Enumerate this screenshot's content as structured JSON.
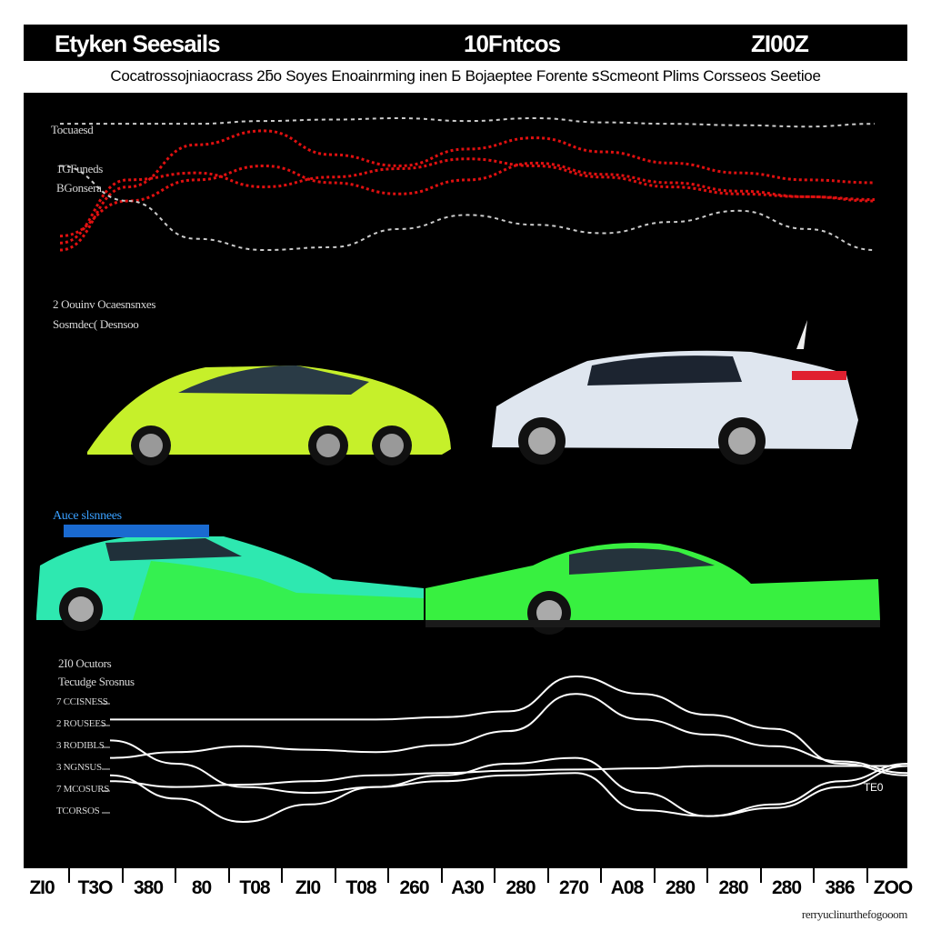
{
  "header": {
    "left_title": "Etyken Seesails",
    "center_title": "10Fntcos",
    "right_title": "ZI00Z"
  },
  "subtitle": "Cocatrossojniaocrass 2ƃo Soyes Enoainrming inen Б Bojaeptee Forente ꜱScmeont Plims Corsseos Seetioe",
  "top_chart": {
    "label_top": "Tocuaesd",
    "label_mid1": "1GFuneds",
    "label_mid2": "BGonsera"
  },
  "middle": {
    "label1": "2 Oouinv Ocaesnsnxes",
    "label2": "Sosmdec( Desnsoo",
    "car_label": "Auce slsnnees"
  },
  "bottom_chart": {
    "label1": "2I0 Ocutors",
    "label2": "Tecudge Srosnus",
    "y_ticks": [
      "7 CCISNESS",
      "2 ROUSEES",
      "3 RODIBLS",
      "3 NGNSUS",
      "7 MCOSURS",
      "TCORSOS"
    ],
    "end_label": "TE0"
  },
  "x_axis": {
    "ticks": [
      "ZI0",
      "T3O",
      "380",
      "80",
      "T08",
      "ZI0",
      "T08",
      "260",
      "A30",
      "280",
      "270",
      "A08",
      "280",
      "280",
      "280",
      "386",
      "ZOO"
    ]
  },
  "footer": "rerryuclinurthefogooom",
  "chart_data": [
    {
      "type": "line",
      "title": "",
      "xlabel": "",
      "ylabel": "",
      "x": [
        0,
        1,
        2,
        3,
        4,
        5,
        6,
        7,
        8,
        9,
        10,
        11,
        12
      ],
      "series": [
        {
          "values": [
            10,
            55,
            85,
            95,
            78,
            70,
            82,
            90,
            80,
            72,
            65,
            60,
            58
          ]
        },
        {
          "values": [
            15,
            60,
            65,
            55,
            62,
            68,
            75,
            70,
            62,
            55,
            50,
            48,
            46
          ]
        },
        {
          "values": [
            20,
            45,
            60,
            70,
            58,
            50,
            60,
            72,
            64,
            58,
            52,
            48,
            45
          ]
        },
        {
          "values": [
            70,
            45,
            18,
            10,
            12,
            25,
            35,
            28,
            22,
            30,
            38,
            25,
            10
          ]
        },
        {
          "values": [
            100,
            100,
            100,
            102,
            103,
            104,
            102,
            104,
            101,
            100,
            99,
            98,
            100
          ]
        }
      ],
      "colors": [
        "#e01010",
        "#e01010",
        "#e01010",
        "#cccccc",
        "#cccccc"
      ]
    },
    {
      "type": "line",
      "title": "",
      "xlabel": "",
      "ylabel": "",
      "x": [
        0,
        1,
        2,
        3,
        4,
        5,
        6,
        7,
        8,
        9,
        10,
        11,
        12
      ],
      "series": [
        {
          "values": [
            88,
            88,
            88,
            88,
            88,
            90,
            95,
            125,
            110,
            92,
            80,
            50,
            40
          ]
        },
        {
          "values": [
            55,
            60,
            65,
            62,
            60,
            66,
            78,
            110,
            88,
            75,
            65,
            52,
            42
          ]
        },
        {
          "values": [
            40,
            20,
            0,
            15,
            30,
            35,
            40,
            42,
            10,
            5,
            12,
            30,
            48
          ]
        },
        {
          "values": [
            35,
            30,
            32,
            35,
            40,
            42,
            44,
            45,
            46,
            48,
            48,
            48,
            48
          ]
        },
        {
          "values": [
            70,
            50,
            30,
            25,
            30,
            40,
            50,
            55,
            25,
            5,
            15,
            35,
            50
          ]
        }
      ],
      "colors": [
        "#ffffff",
        "#ffffff",
        "#ffffff",
        "#ffffff",
        "#ffffff"
      ]
    }
  ]
}
